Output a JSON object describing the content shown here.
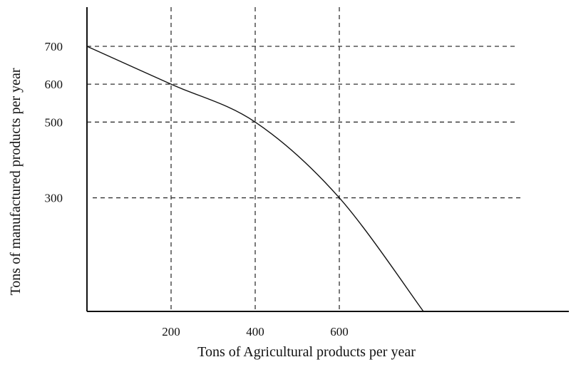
{
  "chart_data": {
    "type": "line",
    "title": "",
    "xlabel": "Tons of Agricultural products per year",
    "ylabel": "Tons of manufactured products per year",
    "x_ticks": [
      200,
      400,
      600
    ],
    "y_ticks": [
      300,
      500,
      600,
      700
    ],
    "xlim": [
      0,
      1130
    ],
    "ylim": [
      0,
      700
    ],
    "grid": "dashed lines at tick values",
    "legend": "none",
    "series": [
      {
        "x": [
          0,
          200,
          400,
          600,
          800
        ],
        "y": [
          700,
          600,
          500,
          300,
          0
        ]
      }
    ],
    "colors": {
      "line": "#111111",
      "grid": "#333333",
      "axis": "#111111"
    }
  }
}
